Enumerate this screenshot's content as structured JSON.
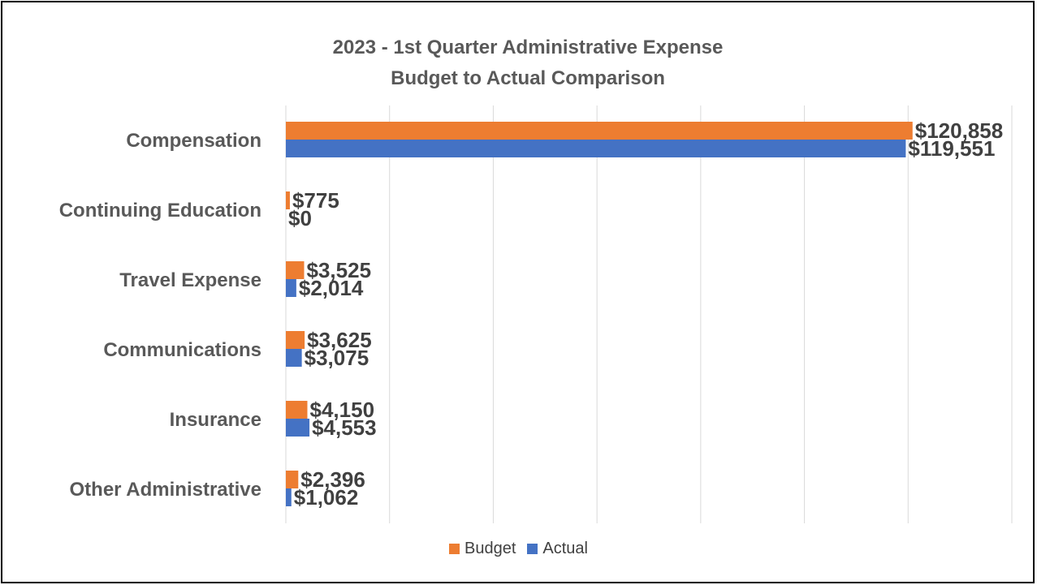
{
  "chart_data": {
    "type": "bar",
    "orientation": "horizontal",
    "title": [
      "2023 - 1st Quarter Administrative Expense",
      "Budget to Actual Comparison"
    ],
    "categories": [
      "Compensation",
      "Continuing Education",
      "Travel Expense",
      "Communications",
      "Insurance",
      "Other Administrative"
    ],
    "series": [
      {
        "name": "Budget",
        "color": "#ED7D31",
        "values": [
          120858,
          775,
          3525,
          3625,
          4150,
          2396
        ],
        "labels": [
          "$120,858",
          "$775",
          "$3,525",
          "$3,625",
          "$4,150",
          "$2,396"
        ]
      },
      {
        "name": "Actual",
        "color": "#4472C4",
        "values": [
          119551,
          0,
          2014,
          3075,
          4553,
          1062
        ],
        "labels": [
          "$119,551",
          "$0",
          "$2,014",
          "$3,075",
          "$4,553",
          "$1,062"
        ]
      }
    ],
    "xlim": [
      0,
      140000
    ],
    "grid": true,
    "legend_position": "bottom"
  }
}
